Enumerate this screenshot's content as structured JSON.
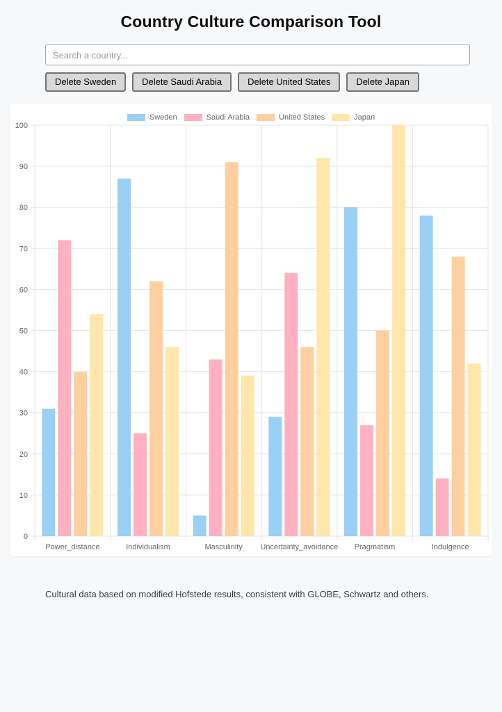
{
  "title": "Country Culture Comparison Tool",
  "search": {
    "placeholder": "Search a country..."
  },
  "buttons": [
    {
      "label": "Delete Sweden"
    },
    {
      "label": "Delete Saudi Arabia"
    },
    {
      "label": "Delete United States"
    },
    {
      "label": "Delete Japan"
    }
  ],
  "footer": {
    "note": "Cultural data based on modified Hofstede results, consistent with GLOBE, Schwartz and others."
  },
  "chart_data": {
    "type": "bar",
    "categories": [
      "Power_distance",
      "Individualism",
      "Masculinity",
      "Uncertainty_avoidance",
      "Pragmatism",
      "Indulgence"
    ],
    "series": [
      {
        "name": "Sweden",
        "color": "#9AD0F5",
        "values": [
          31,
          87,
          5,
          29,
          80,
          78
        ]
      },
      {
        "name": "Saudi Arabia",
        "color": "#FFB1C1",
        "values": [
          72,
          25,
          43,
          64,
          27,
          14
        ]
      },
      {
        "name": "United States",
        "color": "#FFCF9F",
        "values": [
          40,
          62,
          91,
          46,
          50,
          68
        ]
      },
      {
        "name": "Japan",
        "color": "#FFE6AA",
        "values": [
          54,
          46,
          39,
          92,
          100,
          42
        ]
      }
    ],
    "ylim": [
      0,
      100
    ],
    "yticks": [
      0,
      10,
      20,
      30,
      40,
      50,
      60,
      70,
      80,
      90,
      100
    ],
    "grid": true,
    "legend_position": "top",
    "axis_text_color": "#666666",
    "grid_color": "#e6e6e6"
  }
}
